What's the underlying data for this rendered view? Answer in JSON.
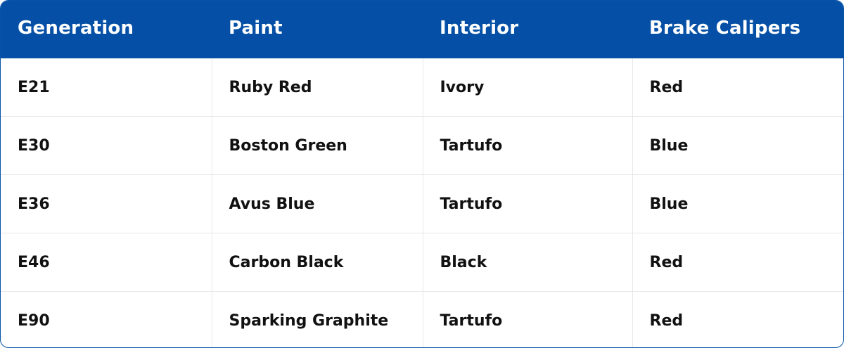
{
  "table": {
    "headers": [
      "Generation",
      "Paint",
      "Interior",
      "Brake Calipers"
    ],
    "rows": [
      [
        "E21",
        "Ruby Red",
        "Ivory",
        "Red"
      ],
      [
        "E30",
        "Boston Green",
        "Tartufo",
        "Blue"
      ],
      [
        "E36",
        "Avus Blue",
        "Tartufo",
        "Blue"
      ],
      [
        "E46",
        "Carbon Black",
        "Black",
        "Red"
      ],
      [
        "E90",
        "Sparking Graphite",
        "Tartufo",
        "Red"
      ]
    ]
  },
  "colors": {
    "header_bg": "#0550a6",
    "header_text": "#ffffff"
  }
}
